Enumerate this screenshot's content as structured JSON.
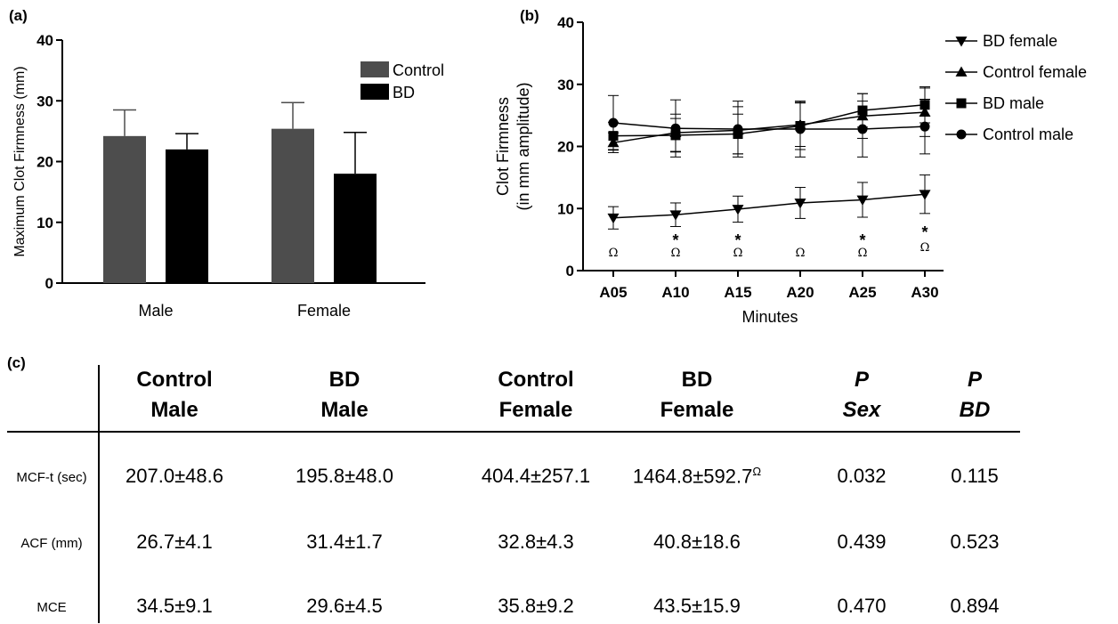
{
  "chart_data": [
    {
      "panel": "(a)",
      "type": "bar",
      "ylabel": "Maximum Clot Firmness (mm)",
      "ylim": [
        0,
        40
      ],
      "yticks": [
        "0",
        "10",
        "20",
        "30",
        "40"
      ],
      "categories": [
        "Male",
        "Female"
      ],
      "series": [
        {
          "name": "Control",
          "color": "#4d4d4d",
          "values": [
            24.2,
            25.4
          ],
          "errors": [
            4.3,
            4.3
          ]
        },
        {
          "name": "BD",
          "color": "#000000",
          "values": [
            22.0,
            18.0
          ],
          "errors": [
            2.6,
            6.8
          ]
        }
      ],
      "legend": "top-right",
      "grid": false
    },
    {
      "panel": "(b)",
      "type": "line",
      "ylabel": [
        "Clot Firmness",
        "(in mm amplitude)"
      ],
      "xlabel": "Minutes",
      "ylim": [
        0,
        40
      ],
      "yticks": [
        "0",
        "10",
        "20",
        "30",
        "40"
      ],
      "categories": [
        "A05",
        "A10",
        "A15",
        "A20",
        "A25",
        "A30"
      ],
      "series": [
        {
          "name": "BD female",
          "marker": "triangle-down",
          "values": [
            8.5,
            9.0,
            9.9,
            10.9,
            11.4,
            12.3
          ],
          "errors": [
            1.8,
            1.9,
            2.1,
            2.5,
            2.8,
            3.1
          ]
        },
        {
          "name": "Control female",
          "marker": "triangle-up",
          "values": [
            20.6,
            22.2,
            22.6,
            23.5,
            24.9,
            25.5
          ],
          "errors": [
            1.6,
            3.0,
            3.8,
            3.5,
            3.6,
            3.9
          ]
        },
        {
          "name": "BD male",
          "marker": "square",
          "values": [
            21.7,
            21.8,
            22.0,
            23.3,
            25.8,
            26.7
          ],
          "errors": [
            2.2,
            2.7,
            3.2,
            3.8,
            2.7,
            2.9
          ]
        },
        {
          "name": "Control male",
          "marker": "circle",
          "values": [
            23.8,
            22.9,
            22.8,
            22.8,
            22.8,
            23.2
          ],
          "errors": [
            4.4,
            4.6,
            4.5,
            4.5,
            4.5,
            4.4
          ]
        }
      ],
      "annotations": {
        "star": "*",
        "omega": "Ω",
        "star_at": [
          "A10",
          "A15",
          "A25",
          "A30"
        ],
        "omega_at": [
          "A05",
          "A10",
          "A15",
          "A20",
          "A25",
          "A30"
        ]
      },
      "legend": "right",
      "grid": false
    }
  ],
  "table": {
    "label": "(c)",
    "headers": [
      {
        "line1": "Control",
        "line2": "Male",
        "italic": false
      },
      {
        "line1": "BD",
        "line2": "Male",
        "italic": false
      },
      {
        "line1": "Control",
        "line2": "Female",
        "italic": false
      },
      {
        "line1": "BD",
        "line2": "Female",
        "italic": false
      },
      {
        "line1": "P",
        "line2": "Sex",
        "italic": true
      },
      {
        "line1": "P",
        "line2": "BD",
        "italic": true
      }
    ],
    "rows": [
      {
        "label": "MCF-t (sec)",
        "cells": [
          "207.0±48.6",
          "195.8±48.0",
          "404.4±257.1",
          "1464.8±592.7",
          "0.032",
          "0.115"
        ],
        "superscript": "Ω"
      },
      {
        "label": "ACF (mm)",
        "cells": [
          "26.7±4.1",
          "31.4±1.7",
          "32.8±4.3",
          "40.8±18.6",
          "0.439",
          "0.523"
        ]
      },
      {
        "label": "MCE",
        "cells": [
          "34.5±9.1",
          "29.6±4.5",
          "35.8±9.2",
          "43.5±15.9",
          "0.470",
          "0.894"
        ]
      }
    ]
  }
}
